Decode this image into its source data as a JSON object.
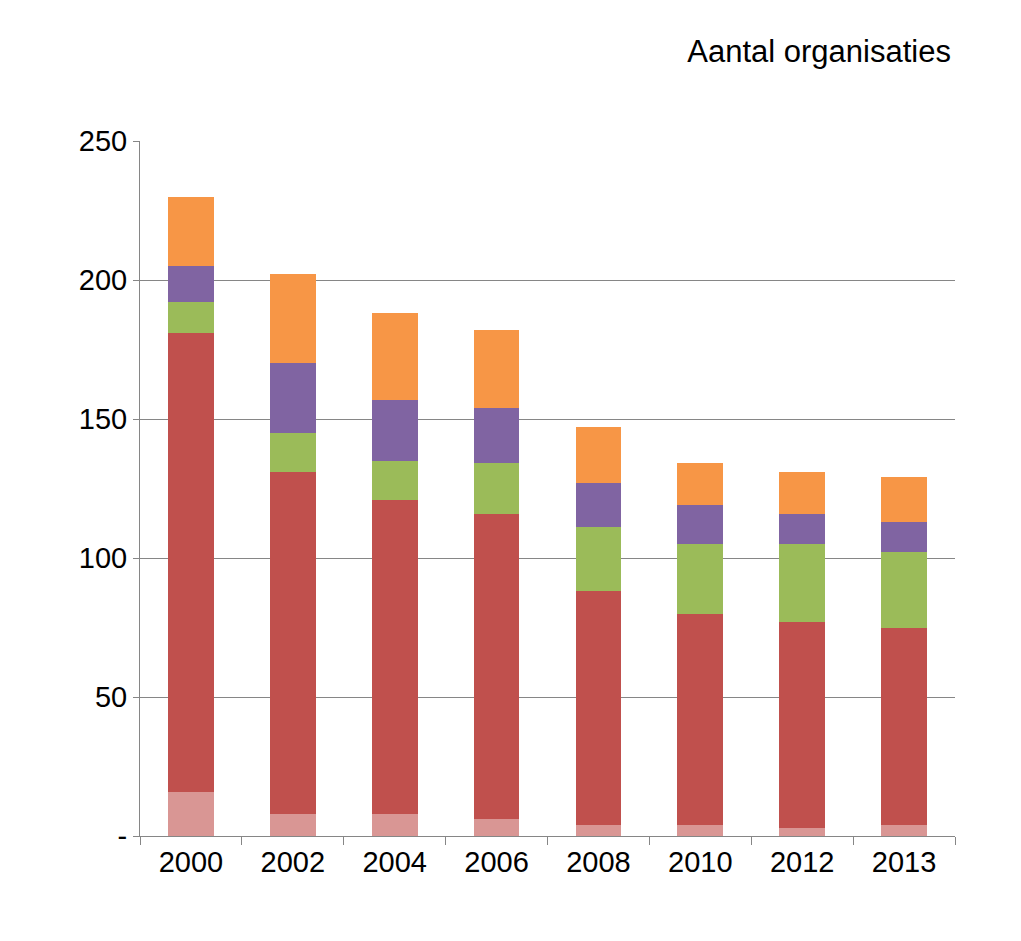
{
  "chart_data": {
    "type": "bar",
    "stacked": true,
    "title": "Aantal organisaties",
    "categories": [
      "2000",
      "2002",
      "2004",
      "2006",
      "2008",
      "2010",
      "2012",
      "2013"
    ],
    "series": [
      {
        "color": "#d99694",
        "values": [
          16,
          8,
          8,
          6,
          4,
          4,
          3,
          4
        ]
      },
      {
        "color": "#c0504d",
        "values": [
          165,
          123,
          113,
          110,
          84,
          76,
          74,
          71
        ]
      },
      {
        "color": "#9bbb59",
        "values": [
          11,
          14,
          14,
          18,
          23,
          25,
          28,
          27
        ]
      },
      {
        "color": "#8064a2",
        "values": [
          13,
          25,
          22,
          20,
          16,
          14,
          11,
          11
        ]
      },
      {
        "color": "#f79646",
        "values": [
          25,
          32,
          31,
          28,
          20,
          15,
          15,
          16
        ]
      }
    ],
    "ylim": [
      0,
      250
    ],
    "yticks": [
      {
        "value": 0,
        "label": "-"
      },
      50,
      100,
      150,
      200,
      250
    ],
    "grid": true
  }
}
